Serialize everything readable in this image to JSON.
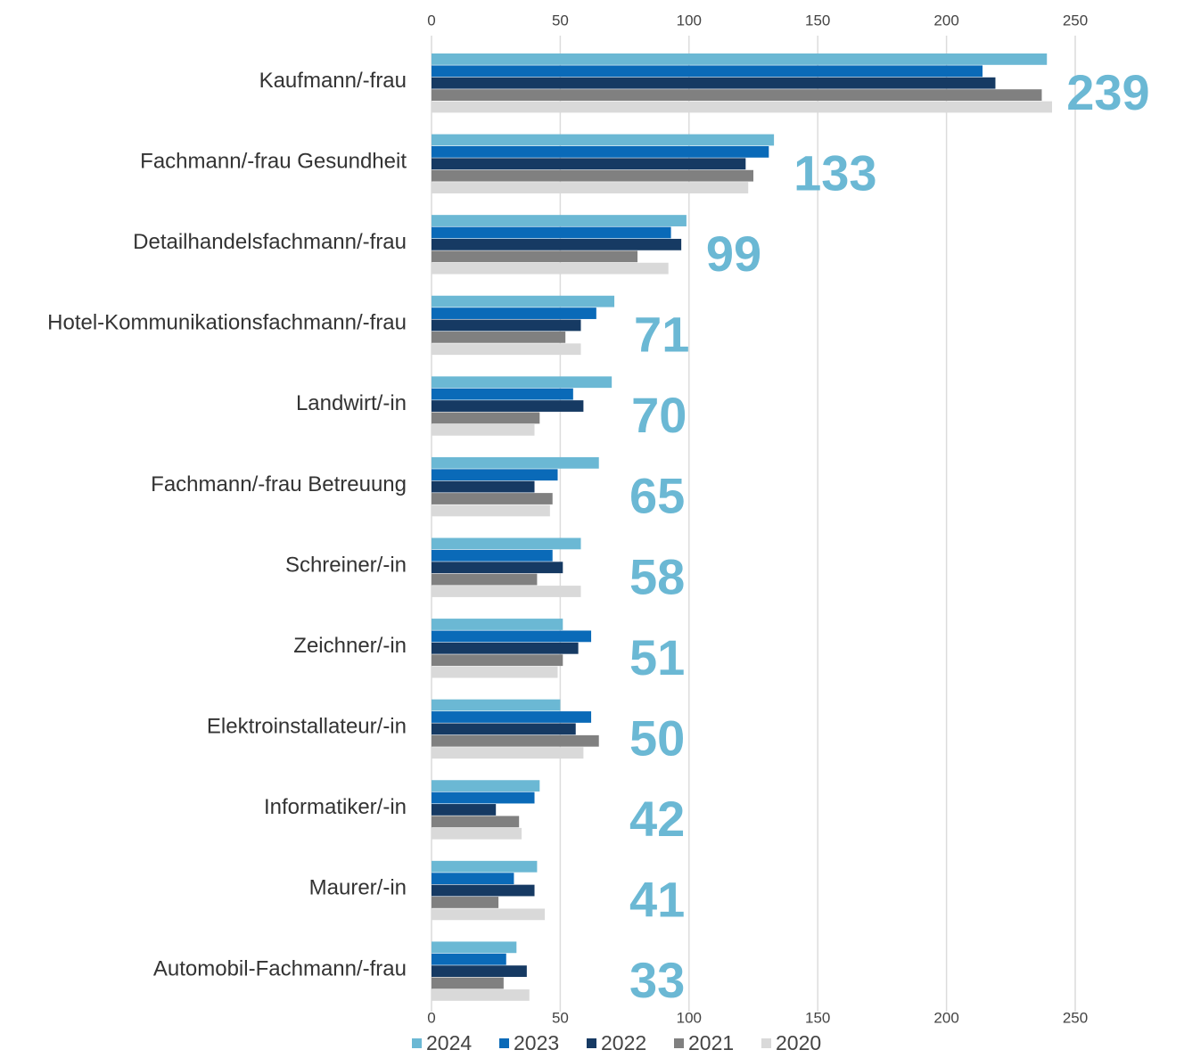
{
  "chart_data": {
    "type": "hbar",
    "categories": [
      "Kaufmann/-frau",
      "Fachmann/-frau Gesundheit",
      "Detailhandelsfachmann/-frau",
      "Hotel-Kommunikationsfachmann/-frau",
      "Landwirt/-in",
      "Fachmann/-frau Betreuung",
      "Schreiner/-in",
      "Zeichner/-in",
      "Elektroinstallateur/-in",
      "Informatiker/-in",
      "Maurer/-in",
      "Automobil-Fachmann/-frau"
    ],
    "series": [
      {
        "name": "2024",
        "color": "#6bb8d4",
        "values": [
          239,
          133,
          99,
          71,
          70,
          65,
          58,
          51,
          50,
          42,
          41,
          33
        ]
      },
      {
        "name": "2023",
        "color": "#0a6ab8",
        "values": [
          214,
          131,
          93,
          64,
          55,
          49,
          47,
          62,
          62,
          40,
          32,
          29
        ]
      },
      {
        "name": "2022",
        "color": "#163a63",
        "values": [
          219,
          122,
          97,
          58,
          59,
          40,
          51,
          57,
          56,
          25,
          40,
          37
        ]
      },
      {
        "name": "2021",
        "color": "#808080",
        "values": [
          237,
          125,
          80,
          52,
          42,
          47,
          41,
          51,
          65,
          34,
          26,
          28
        ]
      },
      {
        "name": "2020",
        "color": "#d9d9d9",
        "values": [
          241,
          123,
          92,
          58,
          40,
          46,
          58,
          49,
          59,
          35,
          44,
          38
        ]
      }
    ],
    "labeled_series": 0,
    "xlim": [
      0,
      250
    ],
    "xticks": [
      0,
      50,
      100,
      150,
      200,
      250
    ],
    "grid": true,
    "legend": "bottom"
  }
}
